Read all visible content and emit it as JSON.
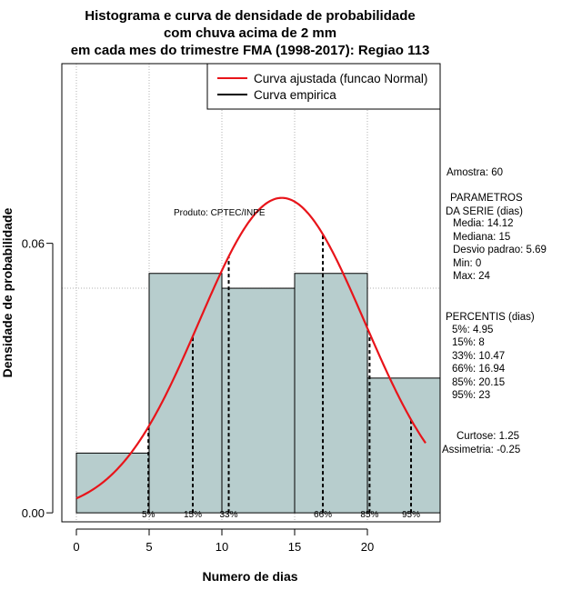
{
  "chart_data": {
    "type": "histogram",
    "title_lines": [
      "Histograma e curva de densidade de probabilidade",
      "com chuva acima de 2 mm",
      "em cada mes do trimestre FMA (1998-2017): Regiao 113"
    ],
    "xlabel": "Numero de dias",
    "ylabel": "Densidade de probabilidade",
    "xlim": [
      -1,
      25
    ],
    "ylim": [
      -0.002,
      0.1
    ],
    "x_ticks": [
      0,
      5,
      10,
      15,
      20
    ],
    "x_tick_labels": [
      "0",
      "5",
      "10",
      "15",
      "20"
    ],
    "y_ticks": [
      0.0,
      0.06
    ],
    "y_tick_labels": [
      "0.00",
      "0.06"
    ],
    "grid_x": [
      0,
      5,
      10,
      15,
      20
    ],
    "grid_y": [
      0.05,
      0.1
    ],
    "bins": [
      {
        "x0": 0,
        "x1": 5,
        "density": 0.0133
      },
      {
        "x0": 5,
        "x1": 10,
        "density": 0.0533
      },
      {
        "x0": 10,
        "x1": 15,
        "density": 0.05
      },
      {
        "x0": 15,
        "x1": 20,
        "density": 0.0533
      },
      {
        "x0": 20,
        "x1": 25,
        "density": 0.03
      }
    ],
    "normal_fit": {
      "mean": 14.12,
      "sd": 5.69,
      "x_from": 0,
      "x_to": 24
    },
    "percentiles": [
      {
        "label": "5%",
        "x": 4.95
      },
      {
        "label": "15%",
        "x": 8
      },
      {
        "label": "33%",
        "x": 10.47
      },
      {
        "label": "66%",
        "x": 16.94
      },
      {
        "label": "85%",
        "x": 20.15
      },
      {
        "label": "95%",
        "x": 23
      }
    ],
    "legend": {
      "position": "top-right",
      "entries": [
        {
          "label": "Curva ajustada (funcao Normal)",
          "color": "#e8141a"
        },
        {
          "label": "Curva empirica",
          "color": "#000000"
        }
      ]
    },
    "annotation": "Produto: CPTEC/INPE",
    "stats_text": {
      "amostra": "Amostra: 60",
      "param_title_1": "PARAMETROS",
      "param_title_2": "DA SERIE (dias)",
      "media": "Media: 14.12",
      "mediana": "Mediana: 15",
      "desvio": "Desvio padrao: 5.69",
      "min": "Min: 0",
      "max": "Max: 24",
      "perc_title": "PERCENTIS (dias)",
      "p5": "5%: 4.95",
      "p15": "15%: 8",
      "p33": "33%: 10.47",
      "p66": "66%: 16.94",
      "p85": "85%: 20.15",
      "p95": "95%: 23",
      "curtose": "Curtose: 1.25",
      "assimetria": "Assimetria: -0.25"
    },
    "colors": {
      "bar_fill": "#b7cdcd",
      "normal_curve": "#e8141a",
      "grid": "#b0b0b0"
    }
  }
}
